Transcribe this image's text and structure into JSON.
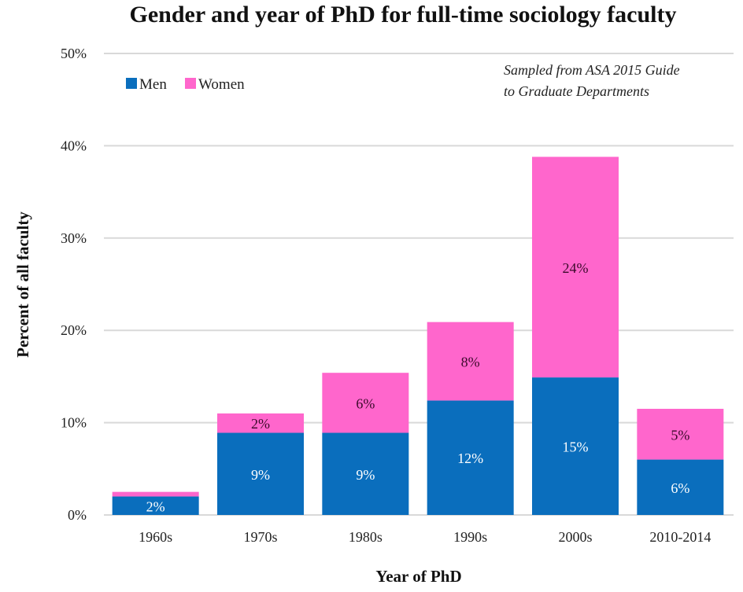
{
  "chart_data": {
    "type": "bar",
    "stacked": true,
    "title": "Gender and year of PhD for full-time sociology faculty",
    "xlabel": "Year of PhD",
    "ylabel": "Percent of all faculty",
    "categories": [
      "1960s",
      "1970s",
      "1980s",
      "1990s",
      "2000s",
      "2010-2014"
    ],
    "series": [
      {
        "name": "Men",
        "color": "#0a6ebd",
        "label_color": "#ffffff",
        "values": [
          2.0,
          8.9,
          8.9,
          12.4,
          14.9,
          6.0
        ],
        "labels": [
          "2%",
          "9%",
          "9%",
          "12%",
          "15%",
          "6%"
        ]
      },
      {
        "name": "Women",
        "color": "#ff66cc",
        "label_color": "#3a0a2a",
        "values": [
          0.5,
          2.1,
          6.5,
          8.5,
          23.9,
          5.5
        ],
        "labels": [
          "",
          "2%",
          "6%",
          "8%",
          "24%",
          "5%"
        ]
      }
    ],
    "ylim": [
      0,
      50
    ],
    "yticks": [
      0,
      10,
      20,
      30,
      40,
      50
    ],
    "ytick_labels": [
      "0%",
      "10%",
      "20%",
      "30%",
      "40%",
      "50%"
    ],
    "grid": true,
    "grid_color": "#d9d9d9",
    "legend": {
      "position": "top-left",
      "entries": [
        "Men",
        "Women"
      ]
    },
    "annotation": {
      "lines": [
        "Sampled from ASA 2015 Guide",
        "to Graduate Departments"
      ],
      "position": "top-right"
    }
  }
}
